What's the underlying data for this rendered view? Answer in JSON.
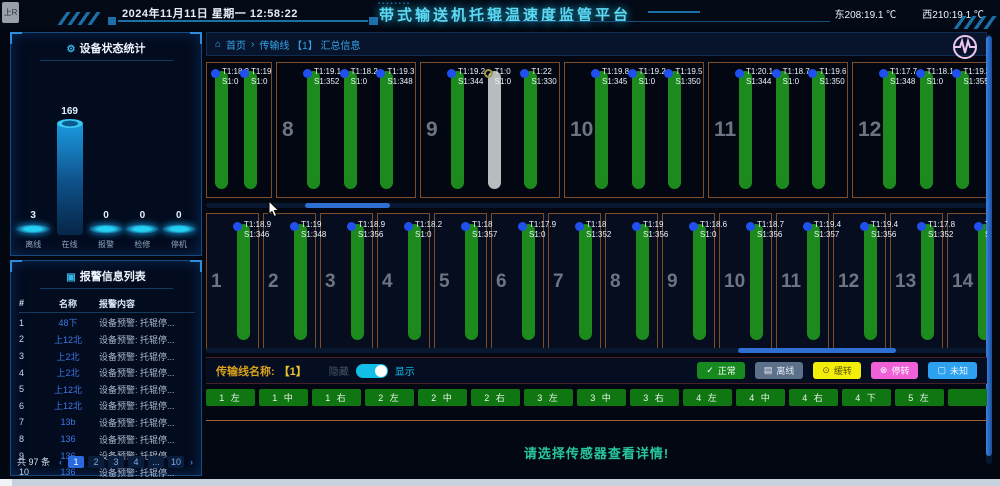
{
  "window": {
    "tab_label": "上R"
  },
  "header": {
    "datetime": "2024年11月11日 星期一 12:58:22",
    "title": "带式输送机托辊温速度监管平台",
    "temp_east": "东208:19.1 ℃",
    "temp_west": "西210:19.1 ℃"
  },
  "stats": {
    "icon": "⚙",
    "title": "设备状态统计"
  },
  "chart_data": {
    "type": "bar",
    "title": "设备状态统计",
    "categories": [
      "离线",
      "在线",
      "报警",
      "检修",
      "停机"
    ],
    "values": [
      3,
      169,
      0,
      0,
      0
    ],
    "ylim": [
      0,
      169
    ],
    "xlabel": "",
    "ylabel": "",
    "legend_position": "none",
    "grid": false
  },
  "alarms": {
    "icon": "▣",
    "title": "报警信息列表",
    "columns": [
      "#",
      "名称",
      "报警内容"
    ],
    "rows": [
      [
        "1",
        "48下",
        "设备预警: 托辊停..."
      ],
      [
        "2",
        "上12北",
        "设备预警: 托辊停..."
      ],
      [
        "3",
        "上2北",
        "设备预警: 托辊停..."
      ],
      [
        "4",
        "上2北",
        "设备预警: 托辊停..."
      ],
      [
        "5",
        "上12北",
        "设备预警: 托辊停..."
      ],
      [
        "6",
        "上12北",
        "设备预警: 托辊停..."
      ],
      [
        "7",
        "13b",
        "设备预警: 托辊停..."
      ],
      [
        "8",
        "136",
        "设备预警: 托辊停..."
      ],
      [
        "9",
        "136",
        "设备预警: 托辊停..."
      ],
      [
        "10",
        "136",
        "设备预警: 托辊停..."
      ]
    ],
    "total": "共 97 条",
    "pages": [
      "1",
      "2",
      "3",
      "4",
      "...",
      "10"
    ],
    "active_page": "1",
    "prev": "‹",
    "next": "›"
  },
  "breadcrumb": {
    "home_icon": "⌂",
    "home": "首页",
    "sep": "›",
    "path": "传输线 【1】 汇总信息"
  },
  "top_row": [
    {
      "number": "",
      "partial": true,
      "bars": [
        {
          "t": "T1:18.3",
          "s": "S1:0"
        },
        {
          "t": "T1:19",
          "s": "S1:0"
        }
      ]
    },
    {
      "number": "8",
      "bars": [
        {
          "t": "T1:19.1",
          "s": "S1:352"
        },
        {
          "t": "T1:18.2",
          "s": "S1:0"
        },
        {
          "t": "T1:19.3",
          "s": "S1:348"
        }
      ]
    },
    {
      "number": "9",
      "bars": [
        {
          "t": "T1:19.2",
          "s": "S1:344"
        },
        {
          "t": "T1:0",
          "s": "S1:0",
          "state": "offline"
        },
        {
          "t": "T1:22",
          "s": "S1:330"
        }
      ]
    },
    {
      "number": "10",
      "bars": [
        {
          "t": "T1:19.8",
          "s": "S1:345"
        },
        {
          "t": "T1:19.2",
          "s": "S1:0"
        },
        {
          "t": "T1:19.5",
          "s": "S1:350"
        }
      ]
    },
    {
      "number": "11",
      "bars": [
        {
          "t": "T1:20.1",
          "s": "S1:344"
        },
        {
          "t": "T1:18.7",
          "s": "S1:0"
        },
        {
          "t": "T1:19.6",
          "s": "S1:350"
        }
      ]
    },
    {
      "number": "12",
      "bars": [
        {
          "t": "T1:17.7",
          "s": "S1:348"
        },
        {
          "t": "T1:18.1",
          "s": "S1:0"
        },
        {
          "t": "T1:19.3",
          "s": "S1:355"
        }
      ]
    }
  ],
  "bottom_row": [
    {
      "number": "1",
      "t": "T1:18.9",
      "s": "S1:346"
    },
    {
      "number": "2",
      "t": "T1:19",
      "s": "S1:348"
    },
    {
      "number": "3",
      "t": "T1:18.9",
      "s": "S1:356"
    },
    {
      "number": "4",
      "t": "T1:18.2",
      "s": "S1:0"
    },
    {
      "number": "5",
      "t": "T1:18",
      "s": "S1:357"
    },
    {
      "number": "6",
      "t": "T1:17.9",
      "s": "S1:0"
    },
    {
      "number": "7",
      "t": "T1:18",
      "s": "S1:352"
    },
    {
      "number": "8",
      "t": "T1:19",
      "s": "S1:356"
    },
    {
      "number": "9",
      "t": "T1:18.6",
      "s": "S1:0"
    },
    {
      "number": "10",
      "t": "T1:18.7",
      "s": "S1:356"
    },
    {
      "number": "11",
      "t": "T1:19.4",
      "s": "S1:357"
    },
    {
      "number": "12",
      "t": "T1:19.4",
      "s": "S1:356"
    },
    {
      "number": "13",
      "t": "T1:17.8",
      "s": "S1:352"
    },
    {
      "number": "14",
      "t": "T1:",
      "s": "S1:"
    }
  ],
  "controls": {
    "line_label": "传输线名称:",
    "line_value": "【1】",
    "hide_label": "隐藏",
    "show_label": "显示",
    "legend": [
      {
        "label": "正常",
        "icon": "✓",
        "bg": "#16891f",
        "fg": "#ffffff"
      },
      {
        "label": "离线",
        "icon": "▤",
        "bg": "#5c7089",
        "fg": "#e6edf5"
      },
      {
        "label": "缓转",
        "icon": "⊙",
        "bg": "#f2ee0a",
        "fg": "#5a5404"
      },
      {
        "label": "停转",
        "icon": "⊗",
        "bg": "#f061d8",
        "fg": "#ffffff"
      },
      {
        "label": "未知",
        "icon": "▢",
        "bg": "#2da1f0",
        "fg": "#eaf6ff"
      }
    ]
  },
  "sensor_buttons": [
    "1 左",
    "1 中",
    "1 右",
    "2 左",
    "2 中",
    "2 右",
    "3 左",
    "3 中",
    "3 右",
    "4 左",
    "4 中",
    "4 右",
    "4 下",
    "5 左",
    ""
  ],
  "message": "请选择传感器查看详情!",
  "colors": {
    "bar_normal": "#1d8a1d",
    "bar_offline": "#b9bcbe",
    "accent": "#12bde8",
    "panel_border": "#7c4b28"
  }
}
